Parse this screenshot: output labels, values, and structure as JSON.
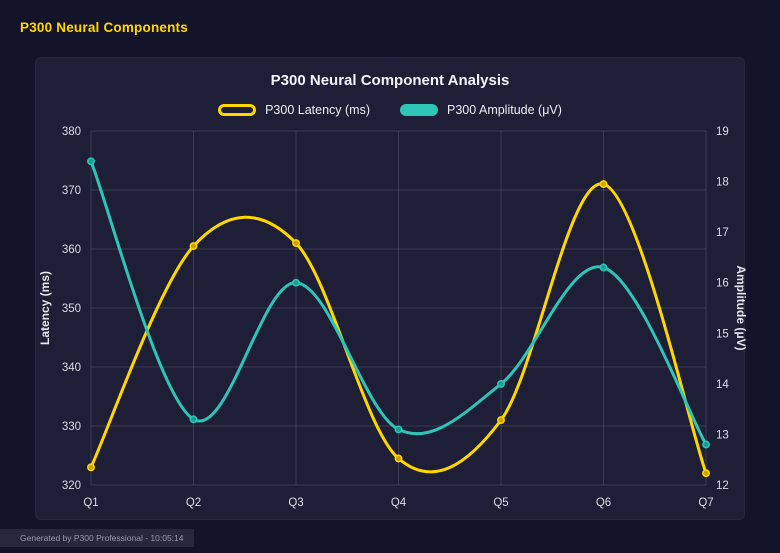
{
  "page": {
    "header": "P300 Neural Components",
    "footer": "Generated by P300 Professional - 10:05:14"
  },
  "chart_data": {
    "type": "line",
    "title": "P300 Neural Component Analysis",
    "categories": [
      "Q1",
      "Q2",
      "Q3",
      "Q4",
      "Q5",
      "Q6",
      "Q7"
    ],
    "series": [
      {
        "name": "P300 Latency (ms)",
        "axis": "left",
        "color": "#ffd700",
        "point_color": "#c8a200",
        "fill": "outline",
        "values": [
          323,
          360.5,
          361,
          324.5,
          331,
          371,
          322
        ]
      },
      {
        "name": "P300 Amplitude (μV)",
        "axis": "right",
        "color": "#2ec4b6",
        "point_color": "#1a9e93",
        "fill": "solid",
        "values": [
          18.4,
          13.3,
          16,
          13.1,
          14,
          16.3,
          12.8
        ]
      }
    ],
    "left_axis": {
      "label": "Latency (ms)",
      "min": 320,
      "max": 380,
      "ticks": [
        320,
        330,
        340,
        350,
        360,
        370,
        380
      ]
    },
    "right_axis": {
      "label": "Amplitude (μV)",
      "min": 12,
      "max": 19,
      "ticks": [
        12,
        13,
        14,
        15,
        16,
        17,
        18,
        19
      ]
    },
    "grid": true,
    "legend_position": "top",
    "smooth": true
  },
  "colors": {
    "accent_yellow": "#ffd700",
    "accent_teal": "#2ec4b6",
    "background": "#13132a",
    "panel": "#1e1e36"
  }
}
